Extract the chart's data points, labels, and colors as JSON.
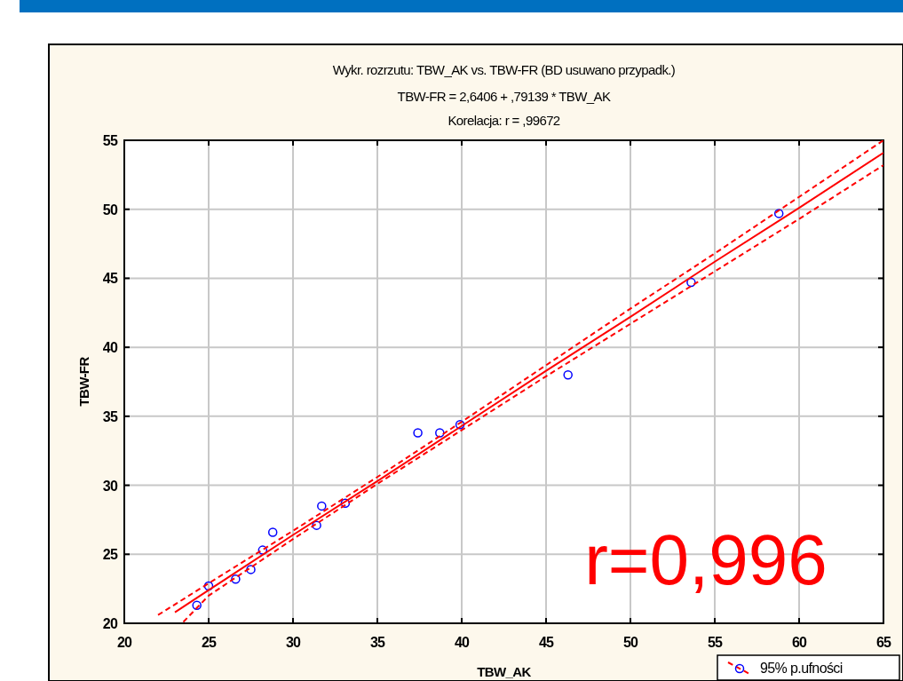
{
  "chart_data": {
    "type": "scatter",
    "title": "Wykr. rozrzutu: TBW_AK   vs. TBW-FR   (BD usuwano przypadk.)",
    "subtitle": "TBW-FR   = 2,6406 + ,79139 * TBW_AK",
    "xlabel": "TBW_AK",
    "ylabel": "TBW-FR",
    "annotations": [
      "Korelacja: r =   ,99672",
      "r=0,996"
    ],
    "xlim": [
      20,
      65
    ],
    "ylim": [
      20,
      55
    ],
    "xticks": [
      20,
      25,
      30,
      35,
      40,
      45,
      50,
      55,
      60,
      65
    ],
    "yticks": [
      20,
      25,
      30,
      35,
      40,
      45,
      50,
      55
    ],
    "grid": true,
    "legend": "bottom right",
    "marker": "circle",
    "series": [
      {
        "color": "#0000ff",
        "x": [
          24.3,
          25.0,
          26.6,
          27.5,
          28.2,
          28.8,
          31.4,
          31.7,
          33.1,
          37.4,
          38.7,
          39.9,
          46.3,
          53.6,
          58.8
        ],
        "values": [
          21.3,
          22.7,
          23.2,
          23.9,
          25.3,
          26.6,
          27.1,
          28.5,
          28.7,
          33.8,
          33.8,
          34.4,
          38.0,
          44.7,
          49.7
        ]
      },
      {
        "type": "line",
        "color": "#ff0000",
        "line_style": "solid",
        "marker": "none",
        "x": [
          23,
          25,
          30,
          35,
          40,
          45,
          50,
          55,
          60,
          65
        ],
        "values": [
          20.8,
          22.4,
          26.4,
          30.3,
          34.3,
          38.3,
          42.2,
          46.2,
          50.1,
          54.1
        ]
      },
      {
        "type": "line",
        "name": "95% p.ufności",
        "color": "#ff0000",
        "line_style": "dashed",
        "marker": "none",
        "x": [
          22,
          25,
          30,
          35,
          40,
          45,
          50,
          55,
          60,
          65
        ],
        "values": [
          20.6,
          22.9,
          26.7,
          30.6,
          34.6,
          38.7,
          42.8,
          46.8,
          50.9,
          55.0
        ]
      },
      {
        "type": "line",
        "color": "#ff0000",
        "line_style": "dashed",
        "marker": "none",
        "x": [
          23.5,
          25,
          30,
          35,
          40,
          45,
          50,
          55,
          60,
          65
        ],
        "values": [
          20.1,
          22.0,
          26.1,
          30.1,
          34.0,
          37.9,
          41.7,
          45.5,
          49.3,
          53.2
        ]
      }
    ]
  }
}
